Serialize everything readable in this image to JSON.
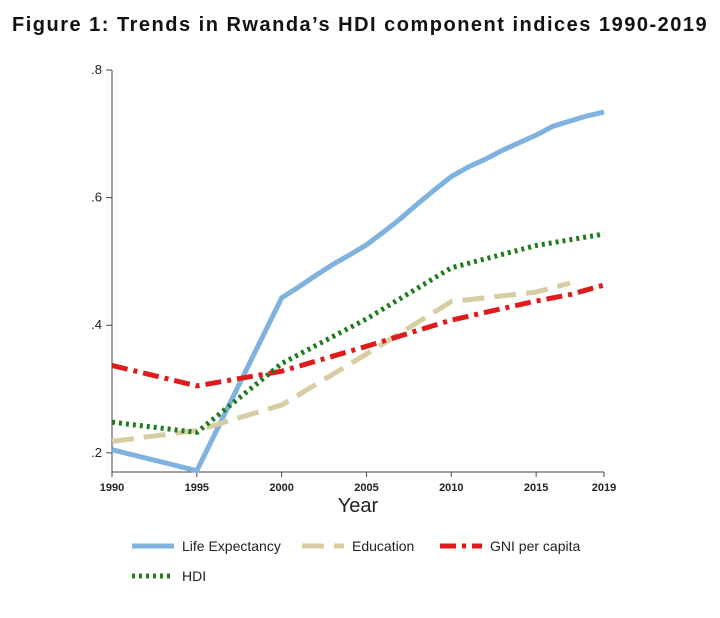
{
  "figure_title": "Figure 1: Trends in Rwanda’s HDI component indices 1990-2019",
  "chart_data": {
    "type": "line",
    "title": "Figure 1: Trends in Rwanda’s HDI component indices 1990-2019",
    "xlabel": "Year",
    "ylabel": "",
    "xlim": [
      1990,
      2019
    ],
    "ylim": [
      0.17,
      0.8
    ],
    "x_ticks": [
      1990,
      1995,
      2000,
      2005,
      2010,
      2015,
      2019
    ],
    "x_tick_labels": [
      "1990",
      "1995",
      "2000",
      "2005",
      "2010",
      "2015",
      "2019"
    ],
    "y_ticks": [
      0.2,
      0.4,
      0.6,
      0.8
    ],
    "y_tick_labels": [
      ".2",
      ".4",
      ".6",
      ".8"
    ],
    "grid": false,
    "legend_position": "bottom",
    "series": [
      {
        "name": "Life Expectancy",
        "color": "#7fb2de",
        "dash": "solid",
        "x": [
          1990,
          1995,
          2000,
          2001,
          2002,
          2003,
          2004,
          2005,
          2006,
          2007,
          2008,
          2009,
          2010,
          2011,
          2012,
          2013,
          2014,
          2015,
          2016,
          2017,
          2018,
          2019
        ],
        "y": [
          0.205,
          0.172,
          0.443,
          0.46,
          0.478,
          0.495,
          0.51,
          0.526,
          0.546,
          0.567,
          0.59,
          0.612,
          0.633,
          0.648,
          0.66,
          0.674,
          0.686,
          0.698,
          0.712,
          0.72,
          0.728,
          0.734
        ]
      },
      {
        "name": "Education",
        "color": "#d8cca3",
        "dash": "long-dash",
        "x": [
          1990,
          1995,
          2000,
          2005,
          2010,
          2015,
          2017
        ],
        "y": [
          0.218,
          0.235,
          0.275,
          0.355,
          0.437,
          0.452,
          0.466
        ]
      },
      {
        "name": "GNI per capita",
        "color": "#e01b1b",
        "dash": "dash-dot",
        "x": [
          1990,
          1995,
          2000,
          2005,
          2010,
          2015,
          2017,
          2019
        ],
        "y": [
          0.337,
          0.305,
          0.328,
          0.367,
          0.408,
          0.438,
          0.448,
          0.463
        ]
      },
      {
        "name": "HDI",
        "color": "#1e7b1e",
        "dash": "dotted",
        "x": [
          1990,
          1995,
          2000,
          2005,
          2010,
          2015,
          2019
        ],
        "y": [
          0.248,
          0.232,
          0.34,
          0.41,
          0.49,
          0.525,
          0.543
        ]
      }
    ]
  }
}
